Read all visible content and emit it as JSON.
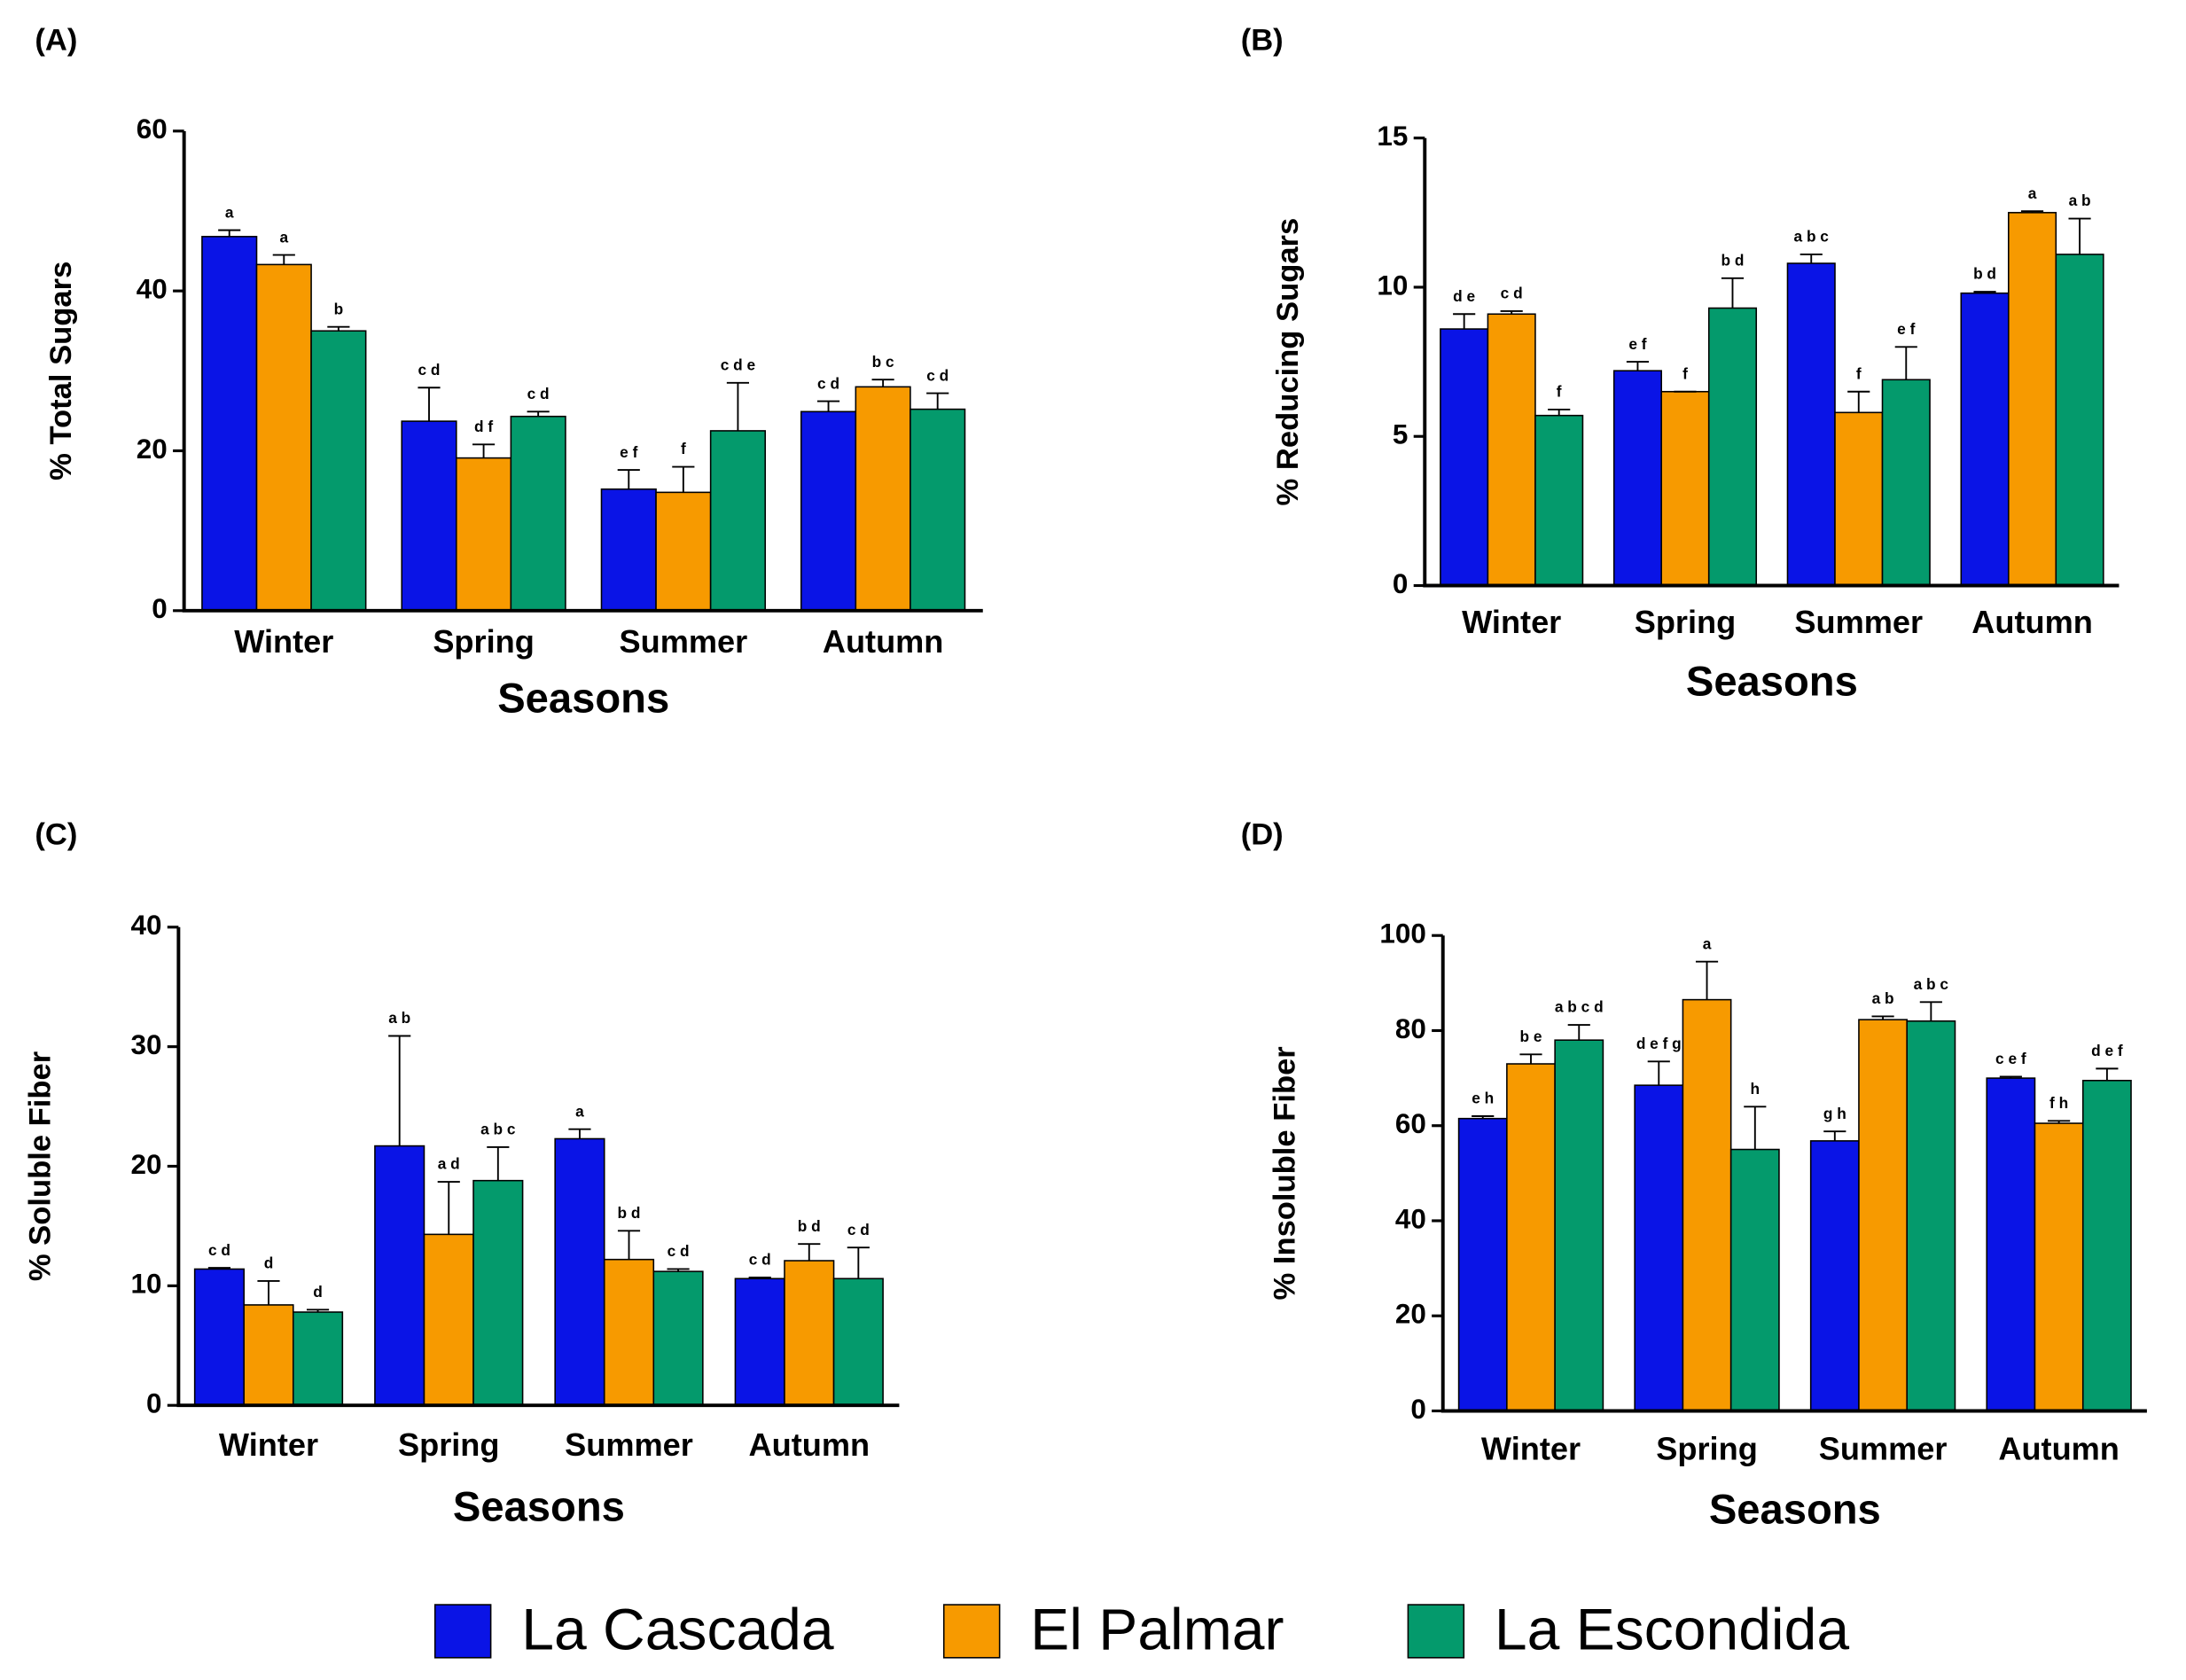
{
  "chart_data": [
    {
      "type": "bar",
      "panel": "(A)",
      "y_label": "% Total Sugars",
      "x_label": "Seasons",
      "categories": [
        "Winter",
        "Spring",
        "Summer",
        "Autumn"
      ],
      "ylim": [
        0,
        60
      ],
      "yticks": [
        0,
        20,
        40,
        60
      ],
      "series": [
        {
          "name": "La Cascada",
          "color": "#0a14e6",
          "values": [
            46.8,
            23.7,
            15.2,
            24.9
          ],
          "errors": [
            0.8,
            4.2,
            2.4,
            1.3
          ],
          "letters": [
            "a",
            "c d",
            "e f",
            "c d"
          ]
        },
        {
          "name": "El Palmar",
          "color": "#f79a00",
          "values": [
            43.3,
            19.1,
            14.8,
            28.0
          ],
          "errors": [
            1.2,
            1.7,
            3.2,
            0.9
          ],
          "letters": [
            "a",
            "d f",
            "f",
            "b c"
          ]
        },
        {
          "name": "La Escondida",
          "color": "#049a6c",
          "values": [
            35.0,
            24.3,
            22.5,
            25.2
          ],
          "errors": [
            0.5,
            0.6,
            6.0,
            2.0
          ],
          "letters": [
            "b",
            "c d",
            "c d e",
            "c d"
          ]
        }
      ]
    },
    {
      "type": "bar",
      "panel": "(B)",
      "y_label": "% Reducing Sugars",
      "x_label": "Seasons",
      "categories": [
        "Winter",
        "Spring",
        "Summer",
        "Autumn"
      ],
      "ylim": [
        0,
        15
      ],
      "yticks": [
        0,
        5,
        10,
        15
      ],
      "series": [
        {
          "color": "#0a14e6",
          "values": [
            8.6,
            7.2,
            10.8,
            9.8
          ],
          "errors": [
            0.5,
            0.3,
            0.3,
            0.05
          ],
          "letters": [
            "d e",
            "e f",
            "a b c",
            "b d"
          ]
        },
        {
          "color": "#f79a00",
          "values": [
            9.1,
            6.5,
            5.8,
            12.5
          ],
          "errors": [
            0.1,
            0,
            0.7,
            0.05
          ],
          "letters": [
            "c d",
            "f",
            "f",
            "a"
          ]
        },
        {
          "color": "#049a6c",
          "values": [
            5.7,
            9.3,
            6.9,
            11.1
          ],
          "errors": [
            0.2,
            1.0,
            1.1,
            1.2
          ],
          "letters": [
            "f",
            "b d",
            "e f",
            "a b"
          ]
        }
      ]
    },
    {
      "type": "bar",
      "panel": "(C)",
      "y_label": "% Soluble Fiber",
      "x_label": "Seasons",
      "categories": [
        "Winter",
        "Spring",
        "Summer",
        "Autumn"
      ],
      "ylim": [
        0,
        40
      ],
      "yticks": [
        0,
        10,
        20,
        30,
        40
      ],
      "series": [
        {
          "color": "#0a14e6",
          "values": [
            11.4,
            21.7,
            22.3,
            10.6
          ],
          "errors": [
            0.1,
            9.2,
            0.8,
            0.1
          ],
          "letters": [
            "c d",
            "a b",
            "a",
            "c d"
          ]
        },
        {
          "color": "#f79a00",
          "values": [
            8.4,
            14.3,
            12.2,
            12.1
          ],
          "errors": [
            2.0,
            4.4,
            2.4,
            1.4
          ],
          "letters": [
            "d",
            "a d",
            "b d",
            "b d"
          ]
        },
        {
          "color": "#049a6c",
          "values": [
            7.8,
            18.8,
            11.2,
            10.6
          ],
          "errors": [
            0.2,
            2.8,
            0.2,
            2.6
          ],
          "letters": [
            "d",
            "a b c",
            "c d",
            "c d"
          ]
        }
      ]
    },
    {
      "type": "bar",
      "panel": "(D)",
      "y_label": "% Insoluble Fiber",
      "x_label": "Seasons",
      "categories": [
        "Winter",
        "Spring",
        "Summer",
        "Autumn"
      ],
      "ylim": [
        0,
        100
      ],
      "yticks": [
        0,
        20,
        40,
        60,
        80,
        100
      ],
      "series": [
        {
          "color": "#0a14e6",
          "values": [
            61.5,
            68.5,
            56.8,
            70.0
          ],
          "errors": [
            0.5,
            5.0,
            2.0,
            0.3
          ],
          "letters": [
            "e h",
            "d e f g",
            "g h",
            "c e f"
          ]
        },
        {
          "color": "#f79a00",
          "values": [
            73.0,
            86.5,
            82.3,
            60.5
          ],
          "errors": [
            2.0,
            8.0,
            0.7,
            0.5
          ],
          "letters": [
            "b e",
            "a",
            "a b",
            "f h"
          ]
        },
        {
          "color": "#049a6c",
          "values": [
            78.0,
            55.0,
            82.0,
            69.5
          ],
          "errors": [
            3.2,
            9.0,
            4.0,
            2.5
          ],
          "letters": [
            "a b c d",
            "h",
            "a b c",
            "d e f"
          ]
        }
      ]
    }
  ]
}
